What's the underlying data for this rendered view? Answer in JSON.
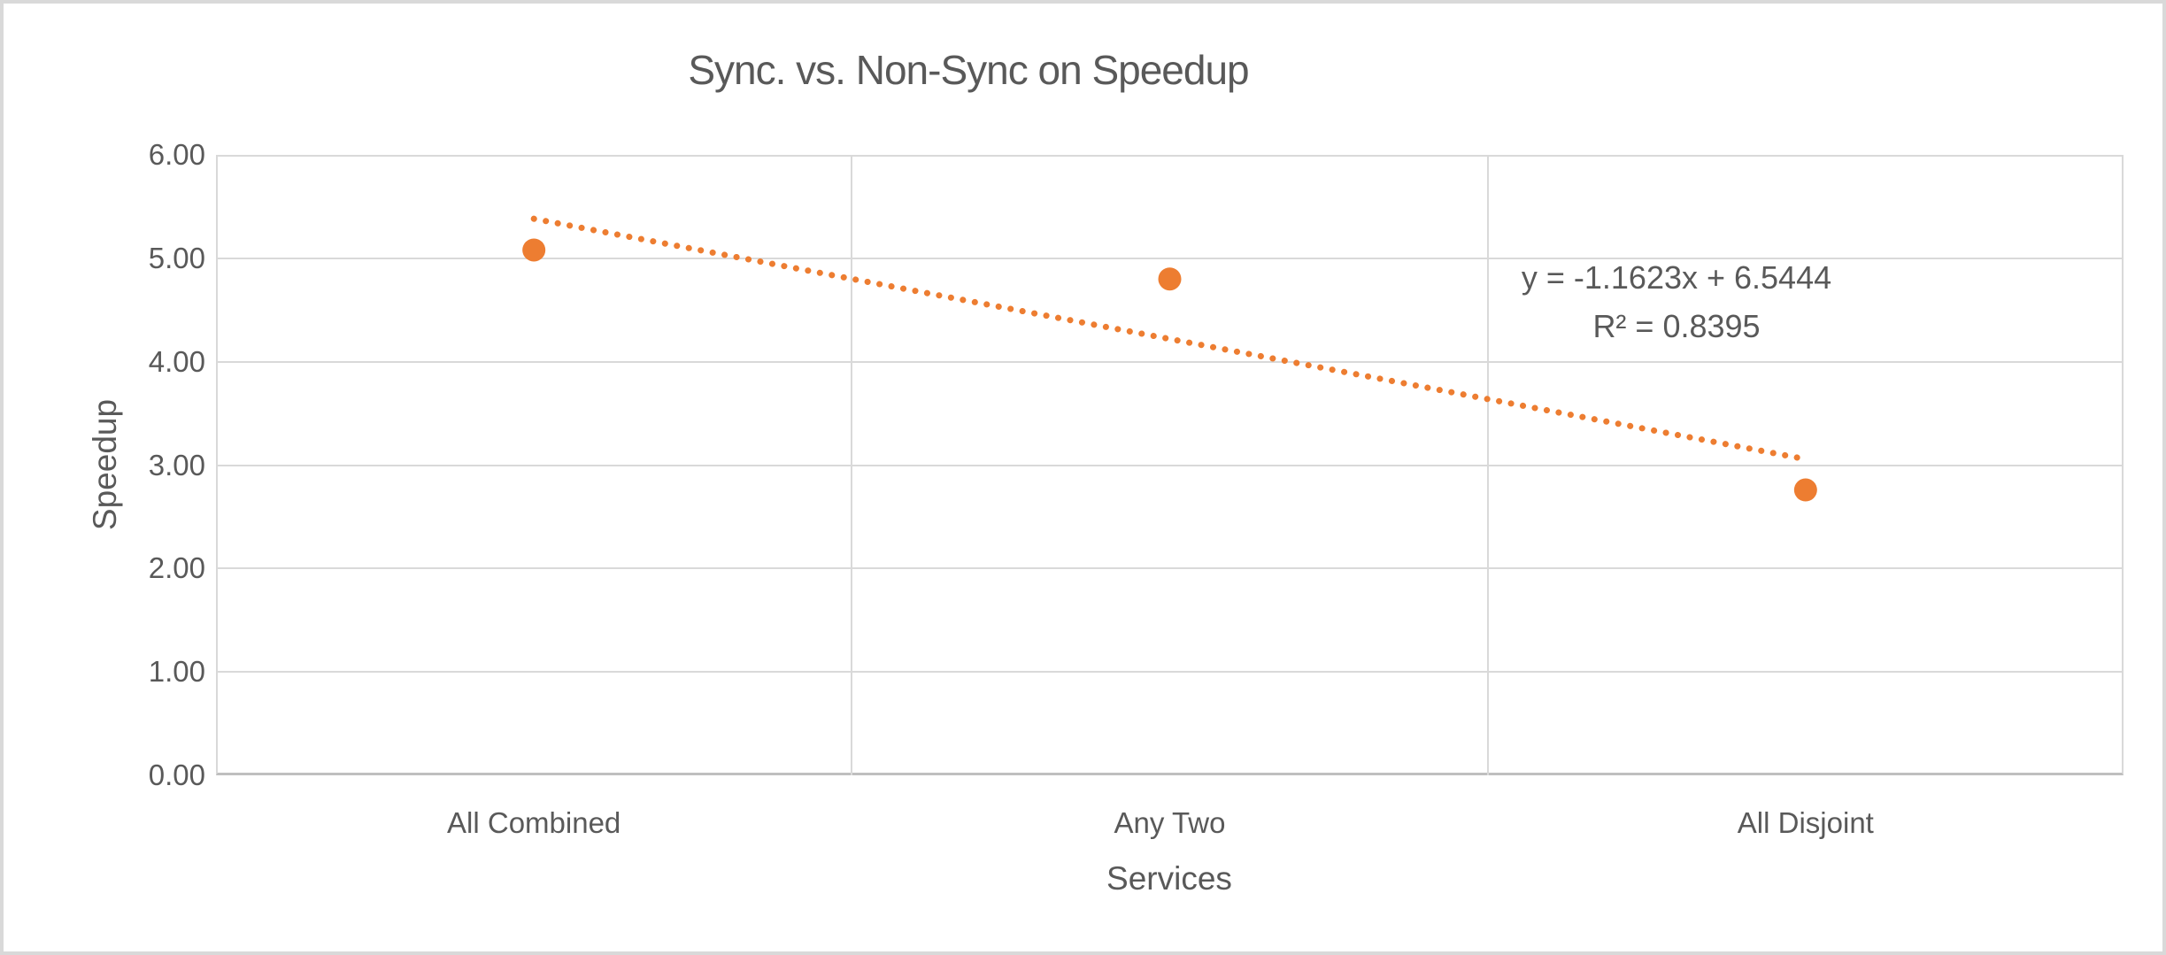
{
  "chart_data": {
    "type": "scatter",
    "title": "Sync. vs. Non-Sync on Speedup",
    "xlabel": "Services",
    "ylabel": "Speedup",
    "categories": [
      "All Combined",
      "Any Two",
      "All Disjoint"
    ],
    "values": [
      5.08,
      4.8,
      2.76
    ],
    "series_name": "Speedup",
    "ylim": [
      0,
      6
    ],
    "y_ticks": [
      "6.00",
      "5.00",
      "4.00",
      "3.00",
      "2.00",
      "1.00",
      "0.00"
    ],
    "grid": true,
    "legend": false,
    "trendline": {
      "type": "linear",
      "slope": -1.1623,
      "intercept": 6.5444,
      "r_squared": 0.8395,
      "equation_text": "y = -1.1623x + 6.5444",
      "r2_text": "R² = 0.8395",
      "style": "dotted",
      "x_start": 1,
      "x_end": 3
    },
    "colors": {
      "marker": "#ED7D31",
      "trendline": "#ED7D31",
      "text": "#595959",
      "gridline": "#D9D9D9",
      "axis_line": "#BFBFBF",
      "background": "#FFFFFF",
      "frame_border": "#D9D9D9"
    }
  }
}
